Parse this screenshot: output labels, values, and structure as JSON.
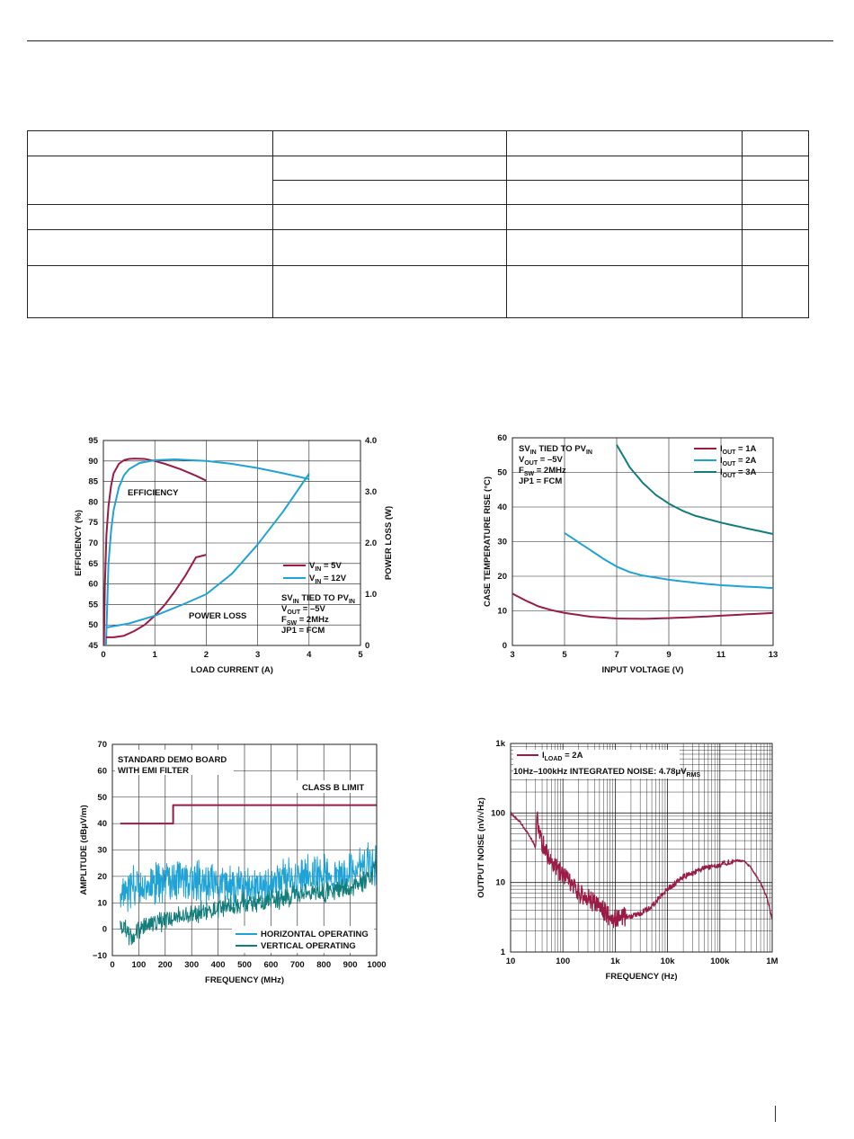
{
  "colors": {
    "crimson": "#9b1b47",
    "blue": "#1fa3d6",
    "teal": "#137d7b",
    "grid": "#222222"
  },
  "chart_data": [
    {
      "type": "line",
      "xlabel": "LOAD CURRENT (A)",
      "ylabel": "EFFICIENCY (%)",
      "ylabel_right": "POWER LOSS (W)",
      "xlim": [
        0,
        5
      ],
      "ylim": [
        45,
        95
      ],
      "ylim_right": [
        0,
        4
      ],
      "x_ticks": [
        "0",
        "1",
        "2",
        "3",
        "4",
        "5"
      ],
      "y_ticks": [
        "45",
        "50",
        "55",
        "60",
        "65",
        "70",
        "75",
        "80",
        "85",
        "90",
        "95"
      ],
      "y_ticks_right": [
        "0",
        "1.0",
        "2.0",
        "3.0",
        "4.0"
      ],
      "legend": [
        {
          "label": "V",
          "sub": "IN",
          "suffix": " = 5V",
          "color": "crimson"
        },
        {
          "label": "V",
          "sub": "IN",
          "suffix": " = 12V",
          "color": "blue"
        }
      ],
      "annotations": [
        "EFFICIENCY",
        "POWER LOSS"
      ],
      "conditions": [
        {
          "t": "SV",
          "s": "IN",
          "r": " TIED TO PV",
          "s2": "IN"
        },
        {
          "t": "V",
          "s": "OUT",
          "r": " = –5V"
        },
        {
          "t": "F",
          "s": "SW",
          "r": " = 2MHz"
        },
        {
          "t": "JP1 = FCM"
        }
      ],
      "series": [
        {
          "name": "V_IN = 5V efficiency",
          "axis": "left",
          "color": "crimson",
          "x": [
            0.01,
            0.03,
            0.06,
            0.1,
            0.15,
            0.2,
            0.3,
            0.4,
            0.5,
            0.6,
            0.8,
            1.0,
            1.2,
            1.5,
            1.8,
            2.0
          ],
          "y": [
            45,
            60,
            72,
            79,
            84,
            87,
            89.3,
            90.2,
            90.5,
            90.6,
            90.5,
            90.0,
            89.3,
            88.0,
            86.4,
            85.2
          ]
        },
        {
          "name": "V_IN = 12V efficiency",
          "axis": "left",
          "color": "blue",
          "x": [
            0.05,
            0.1,
            0.15,
            0.2,
            0.3,
            0.4,
            0.5,
            0.7,
            1.0,
            1.4,
            2.0,
            2.5,
            3.0,
            3.5,
            4.0
          ],
          "y": [
            45,
            65,
            73,
            78,
            83.5,
            86.5,
            88,
            89.5,
            90.2,
            90.4,
            90.0,
            89.3,
            88.3,
            87.0,
            85.6
          ]
        },
        {
          "name": "V_IN = 5V power loss",
          "axis": "right",
          "color": "crimson",
          "x": [
            0.05,
            0.2,
            0.4,
            0.6,
            0.8,
            1.0,
            1.2,
            1.4,
            1.6,
            1.8,
            2.0
          ],
          "y": [
            0.16,
            0.16,
            0.19,
            0.28,
            0.4,
            0.58,
            0.8,
            1.07,
            1.37,
            1.72,
            1.77
          ]
        },
        {
          "name": "V_IN = 12V power loss",
          "axis": "right",
          "color": "blue",
          "x": [
            0.05,
            0.5,
            1.0,
            1.5,
            2.0,
            2.5,
            3.0,
            3.5,
            4.0
          ],
          "y": [
            0.35,
            0.43,
            0.58,
            0.78,
            1.0,
            1.4,
            1.97,
            2.62,
            3.35
          ]
        }
      ]
    },
    {
      "type": "line",
      "xlabel": "INPUT VOLTAGE (V)",
      "ylabel": "CASE TEMPERATURE RISE (°C)",
      "xlim": [
        3,
        13
      ],
      "ylim": [
        0,
        60
      ],
      "x_ticks": [
        "3",
        "5",
        "7",
        "9",
        "11",
        "13"
      ],
      "y_ticks": [
        "0",
        "10",
        "20",
        "30",
        "40",
        "50",
        "60"
      ],
      "legend": [
        {
          "label": "I",
          "sub": "OUT",
          "suffix": " = 1A",
          "color": "crimson"
        },
        {
          "label": "I",
          "sub": "OUT",
          "suffix": " = 2A",
          "color": "blue"
        },
        {
          "label": "I",
          "sub": "OUT",
          "suffix": " = 3A",
          "color": "teal"
        }
      ],
      "conditions": [
        {
          "t": "SV",
          "s": "IN",
          "r": " TIED TO PV",
          "s2": "IN"
        },
        {
          "t": "V",
          "s": "OUT",
          "r": " = –5V"
        },
        {
          "t": "F",
          "s": "SW",
          "r": " = 2MHz"
        },
        {
          "t": "JP1 = FCM"
        }
      ],
      "series": [
        {
          "name": "I_OUT = 1A",
          "color": "crimson",
          "x": [
            3,
            3.5,
            4,
            4.5,
            5,
            6,
            7,
            8,
            9,
            10,
            11,
            12,
            13
          ],
          "y": [
            15,
            13,
            11.3,
            10.2,
            9.4,
            8.3,
            7.8,
            7.7,
            7.9,
            8.2,
            8.6,
            9.0,
            9.4
          ]
        },
        {
          "name": "I_OUT = 2A",
          "color": "blue",
          "x": [
            5,
            5.5,
            6,
            6.5,
            7,
            7.5,
            8,
            9,
            10,
            11,
            12,
            13
          ],
          "y": [
            32.5,
            30,
            27.5,
            25,
            22.8,
            21.2,
            20.2,
            19,
            18.1,
            17.4,
            17,
            16.6
          ]
        },
        {
          "name": "I_OUT = 3A",
          "color": "teal",
          "x": [
            7,
            7.5,
            8,
            8.5,
            9,
            9.5,
            10,
            11,
            12,
            13
          ],
          "y": [
            58,
            51.5,
            47,
            43.5,
            41,
            39,
            37.5,
            35.5,
            33.8,
            32.2
          ]
        }
      ]
    },
    {
      "type": "line",
      "xlabel": "FREQUENCY (MHz)",
      "ylabel": "AMPLITUDE (dBμV/m)",
      "xlim": [
        0,
        1000
      ],
      "ylim": [
        -10,
        70
      ],
      "x_ticks": [
        "0",
        "100",
        "200",
        "300",
        "400",
        "500",
        "600",
        "700",
        "800",
        "900",
        "1000"
      ],
      "y_ticks": [
        "−10",
        "0",
        "10",
        "20",
        "30",
        "40",
        "50",
        "60",
        "70"
      ],
      "legend": [
        {
          "label": "HORIZONTAL OPERATING",
          "color": "blue"
        },
        {
          "label": "VERTICAL OPERATING",
          "color": "teal"
        }
      ],
      "annotations": [
        "STANDARD DEMO BOARD",
        "WITH EMI FILTER",
        "CLASS B LIMIT"
      ],
      "series": [
        {
          "name": "CLASS B LIMIT",
          "color": "crimson",
          "x": [
            30,
            230,
            230,
            1000
          ],
          "y": [
            40,
            40,
            47,
            47
          ]
        },
        {
          "name": "HORIZONTAL OPERATING (mean)",
          "color": "blue",
          "x": [
            30,
            60,
            100,
            150,
            200,
            250,
            300,
            400,
            500,
            600,
            650,
            700,
            750,
            800,
            850,
            900,
            950,
            1000
          ],
          "y": [
            14,
            15,
            16,
            17,
            18,
            19,
            19,
            17,
            16,
            17,
            18,
            19,
            21,
            21,
            19,
            22,
            24,
            25
          ]
        },
        {
          "name": "VERTICAL OPERATING (mean)",
          "color": "teal",
          "x": [
            30,
            50,
            70,
            100,
            150,
            200,
            300,
            400,
            500,
            600,
            700,
            750,
            800,
            900,
            950,
            1000
          ],
          "y": [
            2,
            0,
            -4,
            0,
            2,
            4,
            6,
            8,
            10,
            11,
            13,
            15,
            14,
            15,
            18,
            23
          ]
        }
      ]
    },
    {
      "type": "line",
      "xlabel": "FREQUENCY (Hz)",
      "ylabel": "OUTPUT NOISE (nV/√Hz)",
      "xscale": "log",
      "yscale": "log",
      "xlim": [
        10,
        1000000
      ],
      "ylim": [
        1,
        1000
      ],
      "x_ticks": [
        "10",
        "100",
        "1k",
        "10k",
        "100k",
        "1M"
      ],
      "y_ticks": [
        "1",
        "10",
        "100",
        "1k"
      ],
      "legend": [
        {
          "label": "I",
          "sub": "LOAD",
          "suffix": " = 2A",
          "color": "crimson"
        }
      ],
      "annotation": {
        "t": "10Hz–100kHz INTEGRATED NOISE: 4.78μV",
        "s": "RMS"
      },
      "series": [
        {
          "name": "I_LOAD = 2A",
          "color": "crimson",
          "x": [
            10,
            15,
            20,
            25,
            30,
            32,
            35,
            40,
            50,
            70,
            100,
            150,
            200,
            300,
            500,
            700,
            900,
            1000,
            1500,
            2000,
            3000,
            5000,
            7000,
            10000,
            20000,
            50000,
            100000,
            200000,
            300000,
            400000,
            600000,
            800000,
            1000000
          ],
          "y": [
            100,
            75,
            55,
            42,
            32,
            110,
            50,
            38,
            26,
            17,
            13,
            9,
            7,
            6,
            4.5,
            3.5,
            3,
            3,
            3.2,
            3.3,
            3.6,
            4.5,
            6,
            8,
            12,
            16,
            18,
            21,
            20,
            16,
            10,
            6,
            3
          ]
        }
      ]
    }
  ]
}
